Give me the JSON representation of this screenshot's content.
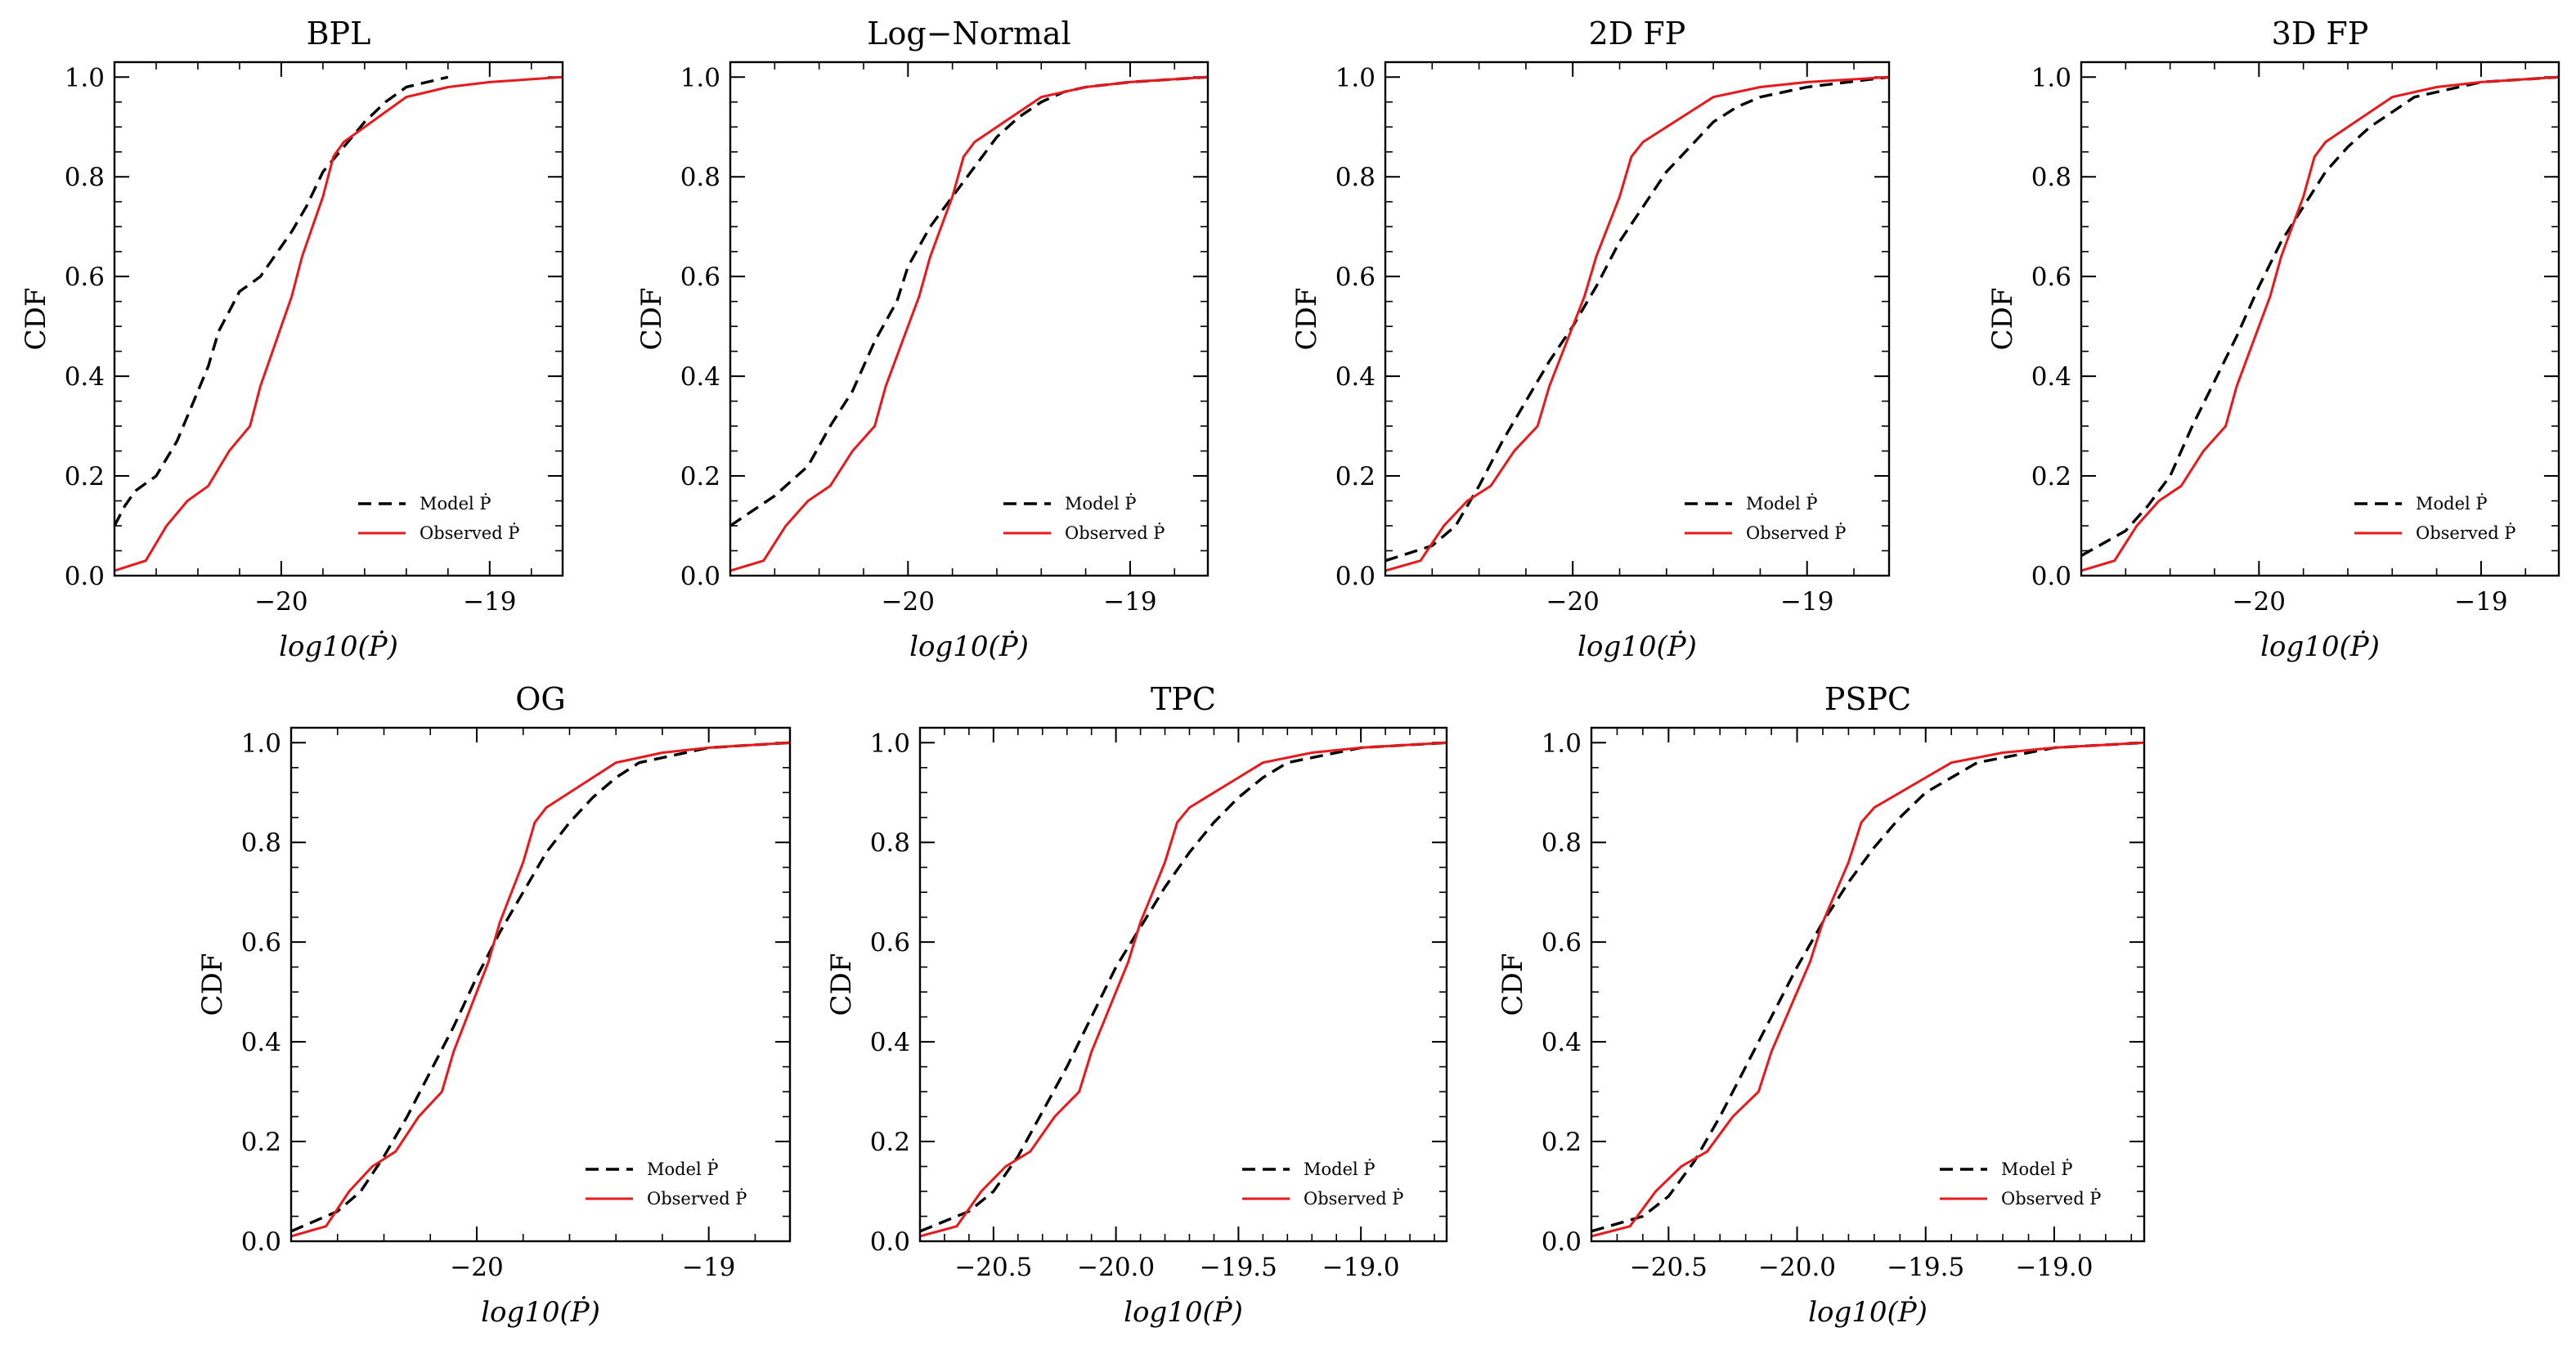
{
  "chart_data": [
    {
      "type": "line",
      "title": "BPL",
      "xlabel": "log10(Ṗ)",
      "ylabel": "CDF",
      "xlim": [
        -20.8,
        -18.65
      ],
      "ylim": [
        0,
        1.03
      ],
      "xticks": [
        -20,
        -19
      ],
      "xticklabels": [
        "−20",
        "−19"
      ],
      "yticks": [
        0,
        0.2,
        0.4,
        0.6,
        0.8,
        1.0
      ],
      "yticklabels": [
        "0.0",
        "0.2",
        "0.4",
        "0.6",
        "0.8",
        "1.0"
      ],
      "legend": {
        "position": "lower-right",
        "entries": [
          "Model Ṗ",
          "Observed Ṗ"
        ]
      },
      "series": [
        {
          "name": "Model Ṗ",
          "color": "#000000",
          "dash": "dashed",
          "x": [
            -20.8,
            -20.75,
            -20.7,
            -20.6,
            -20.5,
            -20.42,
            -20.35,
            -20.3,
            -20.25,
            -20.2,
            -20.1,
            -20.0,
            -19.95,
            -19.88,
            -19.8,
            -19.7,
            -19.6,
            -19.5,
            -19.4,
            -19.3,
            -19.2
          ],
          "y": [
            0.1,
            0.14,
            0.17,
            0.2,
            0.27,
            0.35,
            0.42,
            0.49,
            0.53,
            0.57,
            0.6,
            0.66,
            0.69,
            0.74,
            0.81,
            0.86,
            0.91,
            0.95,
            0.98,
            0.99,
            1.0
          ]
        },
        {
          "name": "Observed Ṗ",
          "color": "#e8191c",
          "dash": "solid",
          "x": [
            -20.8,
            -20.65,
            -20.55,
            -20.45,
            -20.35,
            -20.25,
            -20.15,
            -20.1,
            -20.05,
            -20.0,
            -19.95,
            -19.9,
            -19.85,
            -19.8,
            -19.75,
            -19.7,
            -19.6,
            -19.5,
            -19.4,
            -19.2,
            -19.0,
            -18.65
          ],
          "y": [
            0.01,
            0.03,
            0.1,
            0.15,
            0.18,
            0.25,
            0.3,
            0.38,
            0.44,
            0.5,
            0.56,
            0.64,
            0.7,
            0.76,
            0.84,
            0.87,
            0.9,
            0.93,
            0.96,
            0.98,
            0.99,
            1.0
          ]
        }
      ]
    },
    {
      "type": "line",
      "title": "Log−Normal",
      "xlabel": "log10(Ṗ)",
      "ylabel": "CDF",
      "xlim": [
        -20.8,
        -18.65
      ],
      "ylim": [
        0,
        1.03
      ],
      "xticks": [
        -20,
        -19
      ],
      "xticklabels": [
        "−20",
        "−19"
      ],
      "yticks": [
        0,
        0.2,
        0.4,
        0.6,
        0.8,
        1.0
      ],
      "yticklabels": [
        "0.0",
        "0.2",
        "0.4",
        "0.6",
        "0.8",
        "1.0"
      ],
      "legend": {
        "position": "lower-right",
        "entries": [
          "Model Ṗ",
          "Observed Ṗ"
        ]
      },
      "series": [
        {
          "name": "Model Ṗ",
          "color": "#000000",
          "dash": "dashed",
          "x": [
            -20.8,
            -20.6,
            -20.45,
            -20.35,
            -20.25,
            -20.15,
            -20.05,
            -20.0,
            -19.9,
            -19.8,
            -19.7,
            -19.6,
            -19.5,
            -19.4,
            -19.3,
            -19.2,
            -19.0,
            -18.65
          ],
          "y": [
            0.1,
            0.16,
            0.22,
            0.3,
            0.37,
            0.47,
            0.55,
            0.62,
            0.7,
            0.76,
            0.82,
            0.88,
            0.92,
            0.95,
            0.97,
            0.98,
            0.99,
            1.0
          ]
        },
        {
          "name": "Observed Ṗ",
          "color": "#e8191c",
          "dash": "solid",
          "x": [
            -20.8,
            -20.65,
            -20.55,
            -20.45,
            -20.35,
            -20.25,
            -20.15,
            -20.1,
            -20.05,
            -20.0,
            -19.95,
            -19.9,
            -19.85,
            -19.8,
            -19.75,
            -19.7,
            -19.6,
            -19.5,
            -19.4,
            -19.2,
            -19.0,
            -18.65
          ],
          "y": [
            0.01,
            0.03,
            0.1,
            0.15,
            0.18,
            0.25,
            0.3,
            0.38,
            0.44,
            0.5,
            0.56,
            0.64,
            0.7,
            0.76,
            0.84,
            0.87,
            0.9,
            0.93,
            0.96,
            0.98,
            0.99,
            1.0
          ]
        }
      ]
    },
    {
      "type": "line",
      "title": "2D FP",
      "xlabel": "log10(Ṗ)",
      "ylabel": "CDF",
      "xlim": [
        -20.8,
        -18.65
      ],
      "ylim": [
        0,
        1.03
      ],
      "xticks": [
        -20,
        -19
      ],
      "xticklabels": [
        "−20",
        "−19"
      ],
      "yticks": [
        0,
        0.2,
        0.4,
        0.6,
        0.8,
        1.0
      ],
      "yticklabels": [
        "0.0",
        "0.2",
        "0.4",
        "0.6",
        "0.8",
        "1.0"
      ],
      "legend": {
        "position": "lower-right",
        "entries": [
          "Model Ṗ",
          "Observed Ṗ"
        ]
      },
      "series": [
        {
          "name": "Model Ṗ",
          "color": "#000000",
          "dash": "dashed",
          "x": [
            -20.8,
            -20.6,
            -20.5,
            -20.4,
            -20.3,
            -20.2,
            -20.1,
            -20.0,
            -19.9,
            -19.8,
            -19.7,
            -19.6,
            -19.5,
            -19.4,
            -19.3,
            -19.2,
            -19.0,
            -18.65
          ],
          "y": [
            0.03,
            0.06,
            0.1,
            0.18,
            0.27,
            0.35,
            0.43,
            0.5,
            0.58,
            0.67,
            0.74,
            0.81,
            0.86,
            0.91,
            0.94,
            0.96,
            0.98,
            1.0
          ]
        },
        {
          "name": "Observed Ṗ",
          "color": "#e8191c",
          "dash": "solid",
          "x": [
            -20.8,
            -20.65,
            -20.55,
            -20.45,
            -20.35,
            -20.25,
            -20.15,
            -20.1,
            -20.05,
            -20.0,
            -19.95,
            -19.9,
            -19.85,
            -19.8,
            -19.75,
            -19.7,
            -19.6,
            -19.5,
            -19.4,
            -19.2,
            -19.0,
            -18.65
          ],
          "y": [
            0.01,
            0.03,
            0.1,
            0.15,
            0.18,
            0.25,
            0.3,
            0.38,
            0.44,
            0.5,
            0.56,
            0.64,
            0.7,
            0.76,
            0.84,
            0.87,
            0.9,
            0.93,
            0.96,
            0.98,
            0.99,
            1.0
          ]
        }
      ]
    },
    {
      "type": "line",
      "title": "3D FP",
      "xlabel": "log10(Ṗ)",
      "ylabel": "CDF",
      "xlim": [
        -20.8,
        -18.65
      ],
      "ylim": [
        0,
        1.03
      ],
      "xticks": [
        -20,
        -19
      ],
      "xticklabels": [
        "−20",
        "−19"
      ],
      "yticks": [
        0,
        0.2,
        0.4,
        0.6,
        0.8,
        1.0
      ],
      "yticklabels": [
        "0.0",
        "0.2",
        "0.4",
        "0.6",
        "0.8",
        "1.0"
      ],
      "legend": {
        "position": "lower-right",
        "entries": [
          "Model Ṗ",
          "Observed Ṗ"
        ]
      },
      "series": [
        {
          "name": "Model Ṗ",
          "color": "#000000",
          "dash": "dashed",
          "x": [
            -20.8,
            -20.6,
            -20.5,
            -20.4,
            -20.3,
            -20.2,
            -20.1,
            -20.0,
            -19.9,
            -19.8,
            -19.7,
            -19.6,
            -19.5,
            -19.4,
            -19.3,
            -19.2,
            -19.0,
            -18.65
          ],
          "y": [
            0.04,
            0.09,
            0.14,
            0.2,
            0.3,
            0.39,
            0.48,
            0.58,
            0.67,
            0.74,
            0.81,
            0.86,
            0.9,
            0.93,
            0.96,
            0.97,
            0.99,
            1.0
          ]
        },
        {
          "name": "Observed Ṗ",
          "color": "#e8191c",
          "dash": "solid",
          "x": [
            -20.8,
            -20.65,
            -20.55,
            -20.45,
            -20.35,
            -20.25,
            -20.15,
            -20.1,
            -20.05,
            -20.0,
            -19.95,
            -19.9,
            -19.85,
            -19.8,
            -19.75,
            -19.7,
            -19.6,
            -19.5,
            -19.4,
            -19.2,
            -19.0,
            -18.65
          ],
          "y": [
            0.01,
            0.03,
            0.1,
            0.15,
            0.18,
            0.25,
            0.3,
            0.38,
            0.44,
            0.5,
            0.56,
            0.64,
            0.7,
            0.76,
            0.84,
            0.87,
            0.9,
            0.93,
            0.96,
            0.98,
            0.99,
            1.0
          ]
        }
      ]
    },
    {
      "type": "line",
      "title": "OG",
      "xlabel": "log10(Ṗ)",
      "ylabel": "CDF",
      "xlim": [
        -20.8,
        -18.65
      ],
      "ylim": [
        0,
        1.03
      ],
      "xticks": [
        -20,
        -19
      ],
      "xticklabels": [
        "−20",
        "−19"
      ],
      "yticks": [
        0,
        0.2,
        0.4,
        0.6,
        0.8,
        1.0
      ],
      "yticklabels": [
        "0.0",
        "0.2",
        "0.4",
        "0.6",
        "0.8",
        "1.0"
      ],
      "legend": {
        "position": "lower-right",
        "entries": [
          "Model Ṗ",
          "Observed Ṗ"
        ]
      },
      "series": [
        {
          "name": "Model Ṗ",
          "color": "#000000",
          "dash": "dashed",
          "x": [
            -20.8,
            -20.6,
            -20.5,
            -20.4,
            -20.3,
            -20.2,
            -20.1,
            -20.0,
            -19.9,
            -19.8,
            -19.7,
            -19.6,
            -19.5,
            -19.4,
            -19.3,
            -19.2,
            -19.0,
            -18.65
          ],
          "y": [
            0.02,
            0.06,
            0.1,
            0.17,
            0.25,
            0.34,
            0.43,
            0.53,
            0.62,
            0.7,
            0.78,
            0.84,
            0.89,
            0.93,
            0.96,
            0.97,
            0.99,
            1.0
          ]
        },
        {
          "name": "Observed Ṗ",
          "color": "#e8191c",
          "dash": "solid",
          "x": [
            -20.8,
            -20.65,
            -20.55,
            -20.45,
            -20.35,
            -20.25,
            -20.15,
            -20.1,
            -20.05,
            -20.0,
            -19.95,
            -19.9,
            -19.85,
            -19.8,
            -19.75,
            -19.7,
            -19.6,
            -19.5,
            -19.4,
            -19.2,
            -19.0,
            -18.65
          ],
          "y": [
            0.01,
            0.03,
            0.1,
            0.15,
            0.18,
            0.25,
            0.3,
            0.38,
            0.44,
            0.5,
            0.56,
            0.64,
            0.7,
            0.76,
            0.84,
            0.87,
            0.9,
            0.93,
            0.96,
            0.98,
            0.99,
            1.0
          ]
        }
      ]
    },
    {
      "type": "line",
      "title": "TPC",
      "xlabel": "log10(Ṗ)",
      "ylabel": "CDF",
      "xlim": [
        -20.8,
        -18.65
      ],
      "ylim": [
        0,
        1.03
      ],
      "xticks": [
        -20.5,
        -20.0,
        -19.5,
        -19.0
      ],
      "xticklabels": [
        "−20.5",
        "−20.0",
        "−19.5",
        "−19.0"
      ],
      "yticks": [
        0,
        0.2,
        0.4,
        0.6,
        0.8,
        1.0
      ],
      "yticklabels": [
        "0.0",
        "0.2",
        "0.4",
        "0.6",
        "0.8",
        "1.0"
      ],
      "legend": {
        "position": "lower-right",
        "entries": [
          "Model Ṗ",
          "Observed Ṗ"
        ]
      },
      "series": [
        {
          "name": "Model Ṗ",
          "color": "#000000",
          "dash": "dashed",
          "x": [
            -20.8,
            -20.6,
            -20.5,
            -20.4,
            -20.3,
            -20.2,
            -20.1,
            -20.0,
            -19.9,
            -19.8,
            -19.7,
            -19.6,
            -19.5,
            -19.4,
            -19.3,
            -19.2,
            -19.0,
            -18.65
          ],
          "y": [
            0.02,
            0.06,
            0.1,
            0.17,
            0.26,
            0.35,
            0.45,
            0.55,
            0.63,
            0.71,
            0.78,
            0.84,
            0.89,
            0.93,
            0.96,
            0.97,
            0.99,
            1.0
          ]
        },
        {
          "name": "Observed Ṗ",
          "color": "#e8191c",
          "dash": "solid",
          "x": [
            -20.8,
            -20.65,
            -20.55,
            -20.45,
            -20.35,
            -20.25,
            -20.15,
            -20.1,
            -20.05,
            -20.0,
            -19.95,
            -19.9,
            -19.85,
            -19.8,
            -19.75,
            -19.7,
            -19.6,
            -19.5,
            -19.4,
            -19.2,
            -19.0,
            -18.65
          ],
          "y": [
            0.01,
            0.03,
            0.1,
            0.15,
            0.18,
            0.25,
            0.3,
            0.38,
            0.44,
            0.5,
            0.56,
            0.64,
            0.7,
            0.76,
            0.84,
            0.87,
            0.9,
            0.93,
            0.96,
            0.98,
            0.99,
            1.0
          ]
        }
      ]
    },
    {
      "type": "line",
      "title": "PSPC",
      "xlabel": "log10(Ṗ)",
      "ylabel": "CDF",
      "xlim": [
        -20.8,
        -18.65
      ],
      "ylim": [
        0,
        1.03
      ],
      "xticks": [
        -20.5,
        -20.0,
        -19.5,
        -19.0
      ],
      "xticklabels": [
        "−20.5",
        "−20.0",
        "−19.5",
        "−19.0"
      ],
      "yticks": [
        0,
        0.2,
        0.4,
        0.6,
        0.8,
        1.0
      ],
      "yticklabels": [
        "0.0",
        "0.2",
        "0.4",
        "0.6",
        "0.8",
        "1.0"
      ],
      "legend": {
        "position": "lower-right",
        "entries": [
          "Model Ṗ",
          "Observed Ṗ"
        ]
      },
      "series": [
        {
          "name": "Model Ṗ",
          "color": "#000000",
          "dash": "dashed",
          "x": [
            -20.8,
            -20.6,
            -20.5,
            -20.4,
            -20.3,
            -20.2,
            -20.1,
            -20.0,
            -19.9,
            -19.8,
            -19.7,
            -19.6,
            -19.5,
            -19.4,
            -19.3,
            -19.2,
            -19.0,
            -18.65
          ],
          "y": [
            0.02,
            0.05,
            0.09,
            0.16,
            0.25,
            0.35,
            0.45,
            0.55,
            0.64,
            0.72,
            0.79,
            0.85,
            0.9,
            0.93,
            0.96,
            0.97,
            0.99,
            1.0
          ]
        },
        {
          "name": "Observed Ṗ",
          "color": "#e8191c",
          "dash": "solid",
          "x": [
            -20.8,
            -20.65,
            -20.55,
            -20.45,
            -20.35,
            -20.25,
            -20.15,
            -20.1,
            -20.05,
            -20.0,
            -19.95,
            -19.9,
            -19.85,
            -19.8,
            -19.75,
            -19.7,
            -19.6,
            -19.5,
            -19.4,
            -19.2,
            -19.0,
            -18.65
          ],
          "y": [
            0.01,
            0.03,
            0.1,
            0.15,
            0.18,
            0.25,
            0.3,
            0.38,
            0.44,
            0.5,
            0.56,
            0.64,
            0.7,
            0.76,
            0.84,
            0.87,
            0.9,
            0.93,
            0.96,
            0.98,
            0.99,
            1.0
          ]
        }
      ]
    }
  ]
}
